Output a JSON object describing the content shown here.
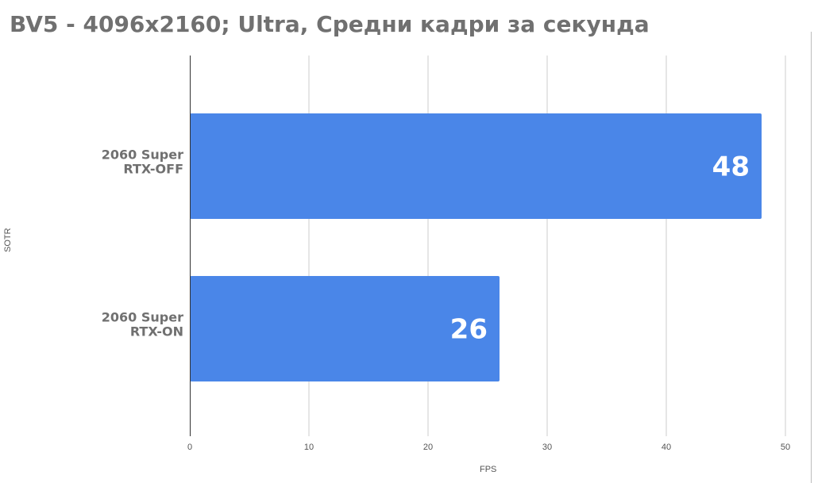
{
  "chart_data": {
    "type": "bar",
    "orientation": "horizontal",
    "title": "BV5 - 4096x2160; Ultra, Средни кадри за секунда",
    "ylabel": "SOTR",
    "xlabel": "FPS",
    "categories": [
      [
        "2060 Super",
        "RTX-OFF"
      ],
      [
        "2060 Super",
        "RTX-ON"
      ]
    ],
    "values": [
      48,
      26
    ],
    "data_labels": [
      "48",
      "26"
    ],
    "xlim": [
      0,
      50
    ],
    "x_ticks": [
      0,
      10,
      20,
      30,
      40,
      50
    ],
    "grid": true,
    "legend": "none",
    "colors": {
      "bar": "#4a86e8",
      "grid": "#cccccc",
      "axis": "#333333",
      "title": "#707070",
      "category_text": "#707070",
      "data_label": "#ffffff"
    }
  }
}
